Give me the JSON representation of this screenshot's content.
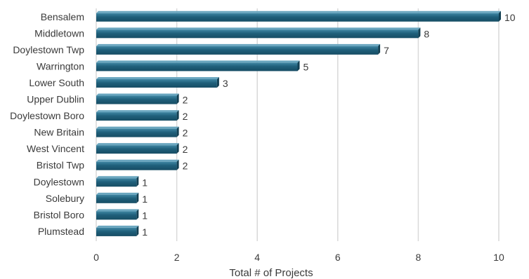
{
  "chart_data": {
    "type": "bar",
    "orientation": "horizontal",
    "style": "3d-bar",
    "title": "",
    "xlabel": "Total # of Projects",
    "ylabel": "",
    "xlim": [
      0,
      10
    ],
    "xticks": [
      0,
      2,
      4,
      6,
      8,
      10
    ],
    "grid": true,
    "legend": false,
    "bar_color": "#1f5f7a",
    "categories": [
      "Bensalem",
      "Middletown",
      "Doylestown Twp",
      "Warrington",
      "Lower South",
      "Upper Dublin",
      "Doylestown Boro",
      "New Britain",
      "West Vincent",
      "Bristol Twp",
      "Doylestown",
      "Solebury",
      "Bristol Boro",
      "Plumstead"
    ],
    "values": [
      10,
      8,
      7,
      5,
      3,
      2,
      2,
      2,
      2,
      2,
      1,
      1,
      1,
      1
    ]
  }
}
